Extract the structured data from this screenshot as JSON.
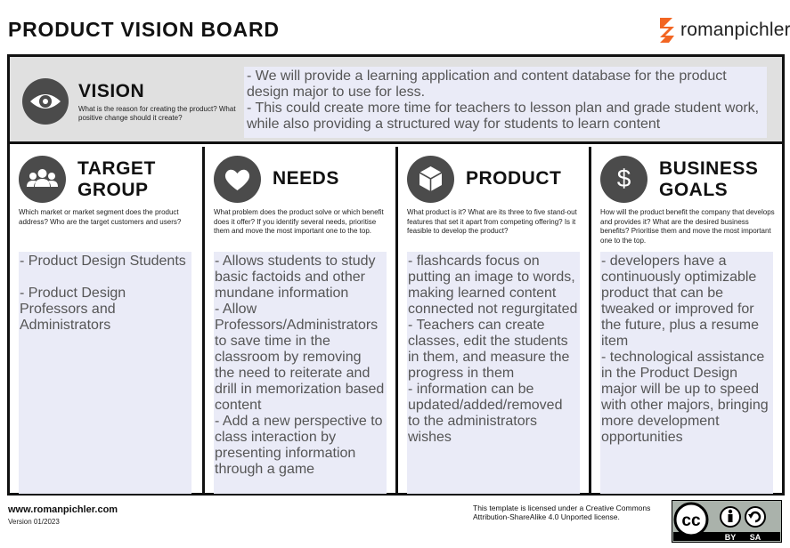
{
  "header": {
    "title": "PRODUCT VISION BOARD",
    "brand_name": "romanpichler",
    "brand_color": "#f26522"
  },
  "vision": {
    "icon": "eye-icon",
    "title": "VISION",
    "prompt": "What is the reason for creating the product? What positive change should it create?",
    "text": "- We will provide a learning application and content database for the product design major to use for less.\n- This could create more time for teachers to lesson plan and grade student work, while also providing a structured way for students to learn content"
  },
  "columns": [
    {
      "icon": "people-icon",
      "title": "TARGET GROUP",
      "prompt": "Which market or market segment does the product address? Who are the target customers and users?",
      "text": "- Product Design Students\n\n- Product Design Professors and Administrators"
    },
    {
      "icon": "heart-icon",
      "title": "NEEDS",
      "prompt": "What problem does the product solve or which benefit does it offer? If you identify several needs, prioritise them and move the most important one to the top.",
      "text": "- Allows students to study basic factoids and other mundane information\n- Allow Professors/Administrators to save time in the classroom by removing the need to reiterate and drill in memorization based content\n- Add a new perspective to class interaction by presenting information through a game"
    },
    {
      "icon": "cube-icon",
      "title": "PRODUCT",
      "prompt": "What product is it? What are its three to five stand-out features that set it apart from competing offering? Is it feasible to develop the product?",
      "text": "- flashcards focus on putting an image to words, making learned content connected not regurgitated\n- Teachers can create classes, edit the students in them, and measure the progress in them\n- information can be updated/added/removed to the administrators wishes"
    },
    {
      "icon": "dollar-icon",
      "title": "BUSINESS GOALS",
      "prompt": "How will the product benefit the company that develops and provides it? What are the desired business benefits? Prioritise them and move the most important one to the top.",
      "text": "- developers have a continuously optimizable product that can be tweaked or improved for the future, plus a resume item\n- technological assistance in the Product Design major will be up to speed with other majors, bringing more development opportunities"
    }
  ],
  "footer": {
    "website": "www.romanpichler.com",
    "version": "Version 01/2023",
    "license": "This template is licensed under a Creative Commons Attribution-ShareAlike 4.0 Unported license.",
    "badge_cc": "cc",
    "badge_by": "BY",
    "badge_sa": "SA"
  }
}
